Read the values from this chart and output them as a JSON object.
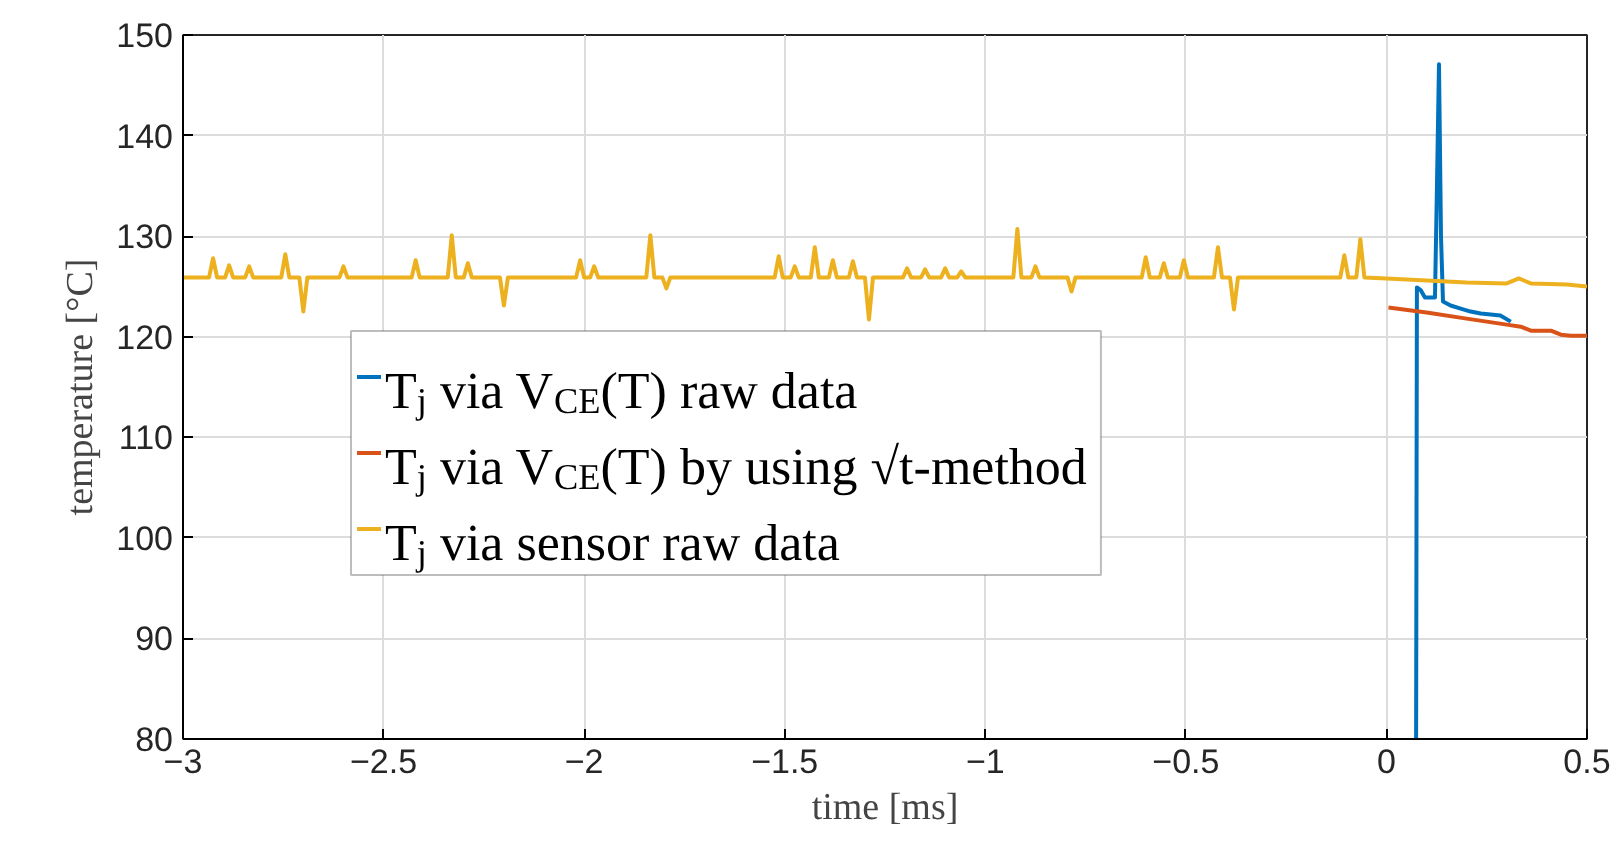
{
  "chart_data": {
    "type": "line",
    "xlabel": "time [ms]",
    "ylabel": "temperature [°C]",
    "xlim": [
      -3,
      0.5
    ],
    "ylim": [
      80,
      150
    ],
    "xticks": [
      -3,
      -2.5,
      -2,
      -1.5,
      -1,
      -0.5,
      0,
      0.5
    ],
    "yticks": [
      80,
      90,
      100,
      110,
      120,
      130,
      140,
      150
    ],
    "grid": true,
    "legend": "left",
    "line_style": "solid",
    "marker": "none",
    "series": [
      {
        "name": "T$_{j}$ via V$_{CE}$(T) raw data",
        "color": "#0072bd",
        "x": [
          0.074,
          0.076,
          0.086,
          0.096,
          0.121,
          0.126,
          0.131,
          0.136,
          0.141,
          0.16,
          0.185,
          0.21,
          0.235,
          0.26,
          0.284,
          0.31
        ],
        "values": [
          80,
          124.9,
          124.6,
          123.9,
          123.9,
          135,
          147.1,
          130,
          123.5,
          123.1,
          122.8,
          122.5,
          122.3,
          122.2,
          122.1,
          121.5
        ]
      },
      {
        "name": "T$_{j}$ via V$_{CE}$(T) by using √t-method",
        "color": "#d95319",
        "x": [
          0.005,
          0.1,
          0.2,
          0.3,
          0.335,
          0.36,
          0.385,
          0.41,
          0.435,
          0.46,
          0.5
        ],
        "values": [
          122.9,
          122.4,
          121.8,
          121.2,
          121.0,
          120.6,
          120.6,
          120.6,
          120.2,
          120.1,
          120.1
        ]
      },
      {
        "name": "T$_{j}$ via sensor raw data",
        "color": "#edb120",
        "x": [
          -3,
          -2.935,
          -2.925,
          -2.915,
          -2.895,
          -2.885,
          -2.875,
          -2.845,
          -2.835,
          -2.825,
          -2.755,
          -2.745,
          -2.735,
          -2.71,
          -2.7,
          -2.69,
          -2.61,
          -2.6,
          -2.59,
          -2.43,
          -2.42,
          -2.41,
          -2.34,
          -2.33,
          -2.32,
          -2.3,
          -2.29,
          -2.28,
          -2.21,
          -2.2,
          -2.19,
          -2.02,
          -2.01,
          -2.0,
          -1.985,
          -1.975,
          -1.965,
          -1.845,
          -1.835,
          -1.825,
          -1.805,
          -1.795,
          -1.785,
          -1.525,
          -1.515,
          -1.505,
          -1.485,
          -1.475,
          -1.465,
          -1.435,
          -1.425,
          -1.415,
          -1.39,
          -1.38,
          -1.37,
          -1.34,
          -1.33,
          -1.32,
          -1.3,
          -1.29,
          -1.28,
          -1.205,
          -1.195,
          -1.185,
          -1.16,
          -1.15,
          -1.14,
          -1.11,
          -1.1,
          -1.09,
          -1.07,
          -1.06,
          -1.05,
          -0.93,
          -0.92,
          -0.91,
          -0.885,
          -0.875,
          -0.865,
          -0.795,
          -0.785,
          -0.775,
          -0.61,
          -0.6,
          -0.59,
          -0.565,
          -0.555,
          -0.545,
          -0.515,
          -0.505,
          -0.495,
          -0.43,
          -0.42,
          -0.41,
          -0.39,
          -0.38,
          -0.37,
          -0.115,
          -0.105,
          -0.095,
          -0.075,
          -0.065,
          -0.055,
          0.0,
          0.1,
          0.2,
          0.3,
          0.33,
          0.36,
          0.45,
          0.5
        ],
        "values": [
          125.9,
          125.9,
          127.8,
          125.9,
          125.9,
          127.1,
          125.9,
          125.9,
          127.0,
          125.9,
          125.9,
          128.2,
          125.9,
          125.9,
          122.5,
          125.9,
          125.9,
          127.0,
          125.9,
          125.9,
          127.6,
          125.9,
          125.9,
          130.1,
          125.9,
          125.9,
          127.3,
          125.9,
          125.9,
          123.1,
          125.9,
          125.9,
          127.6,
          125.9,
          125.9,
          127.0,
          125.9,
          125.9,
          130.1,
          125.9,
          125.9,
          124.8,
          125.9,
          125.9,
          128.0,
          125.9,
          125.9,
          127.0,
          125.9,
          125.9,
          128.9,
          125.9,
          125.9,
          127.6,
          125.9,
          125.9,
          127.5,
          125.9,
          125.9,
          121.7,
          125.9,
          125.9,
          126.8,
          125.9,
          125.9,
          126.7,
          125.9,
          125.9,
          126.8,
          125.9,
          125.9,
          126.5,
          125.9,
          125.9,
          130.7,
          125.9,
          125.9,
          127.0,
          125.9,
          125.9,
          124.5,
          125.9,
          125.9,
          127.9,
          125.9,
          125.9,
          127.3,
          125.9,
          125.9,
          127.6,
          125.9,
          125.9,
          128.9,
          125.9,
          125.9,
          122.7,
          125.9,
          125.9,
          128.1,
          125.9,
          125.9,
          129.7,
          125.9,
          125.8,
          125.6,
          125.4,
          125.3,
          125.8,
          125.3,
          125.2,
          125.0
        ]
      }
    ]
  }
}
